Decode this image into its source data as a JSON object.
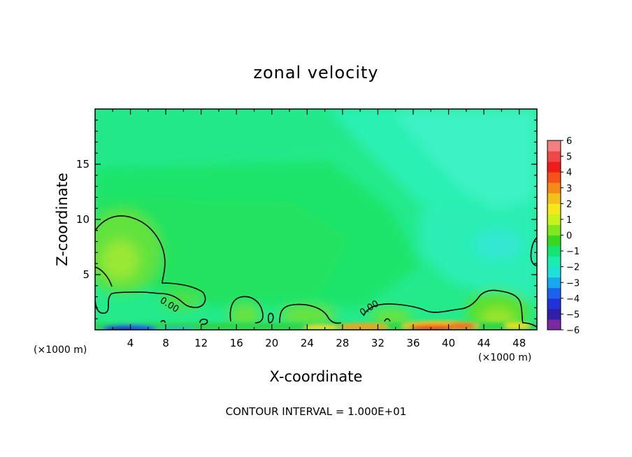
{
  "chart_data": {
    "type": "heatmap",
    "title": "zonal velocity",
    "xlabel": "X-coordinate",
    "ylabel": "Z-coordinate",
    "x_unit_left": "(×1000 m)",
    "x_unit_right": "(×1000 m)",
    "xlim": [
      0,
      50
    ],
    "ylim": [
      0,
      20
    ],
    "x_ticks": [
      4,
      8,
      12,
      16,
      20,
      24,
      28,
      32,
      36,
      40,
      44,
      48
    ],
    "y_ticks": [
      5,
      10,
      15
    ],
    "contour_interval_text": "CONTOUR INTERVAL = 1.000E+01",
    "contour_labels": [
      "0.00",
      "0.00"
    ],
    "colorbar": {
      "min": -6,
      "max": 6,
      "labels": [
        "6",
        "5",
        "4",
        "3",
        "2",
        "1",
        "0",
        "−1",
        "−2",
        "−3",
        "−4",
        "−5",
        "−6"
      ],
      "colors": [
        "#7a2a9e",
        "#2f1fa8",
        "#2232d8",
        "#1c62ee",
        "#17a7ee",
        "#1fe0d8",
        "#19edb0",
        "#16e472",
        "#38d820",
        "#7ee81c",
        "#c7f21c",
        "#f5e81a",
        "#f5c01a",
        "#f58a1a",
        "#f5521a",
        "#f01c1c",
        "#f04848",
        "#f28080"
      ]
    },
    "features": [
      {
        "name": "positive zone (~0.8)",
        "x": 3,
        "z": 6.5
      },
      {
        "name": "negative zone (~-1.5)",
        "x": 45.5,
        "z": 8
      },
      {
        "name": "strong positive jet near surface",
        "x": 40,
        "z": 0.3
      },
      {
        "name": "strong negative jet near surface",
        "x": 3,
        "z": 0.3
      }
    ]
  }
}
